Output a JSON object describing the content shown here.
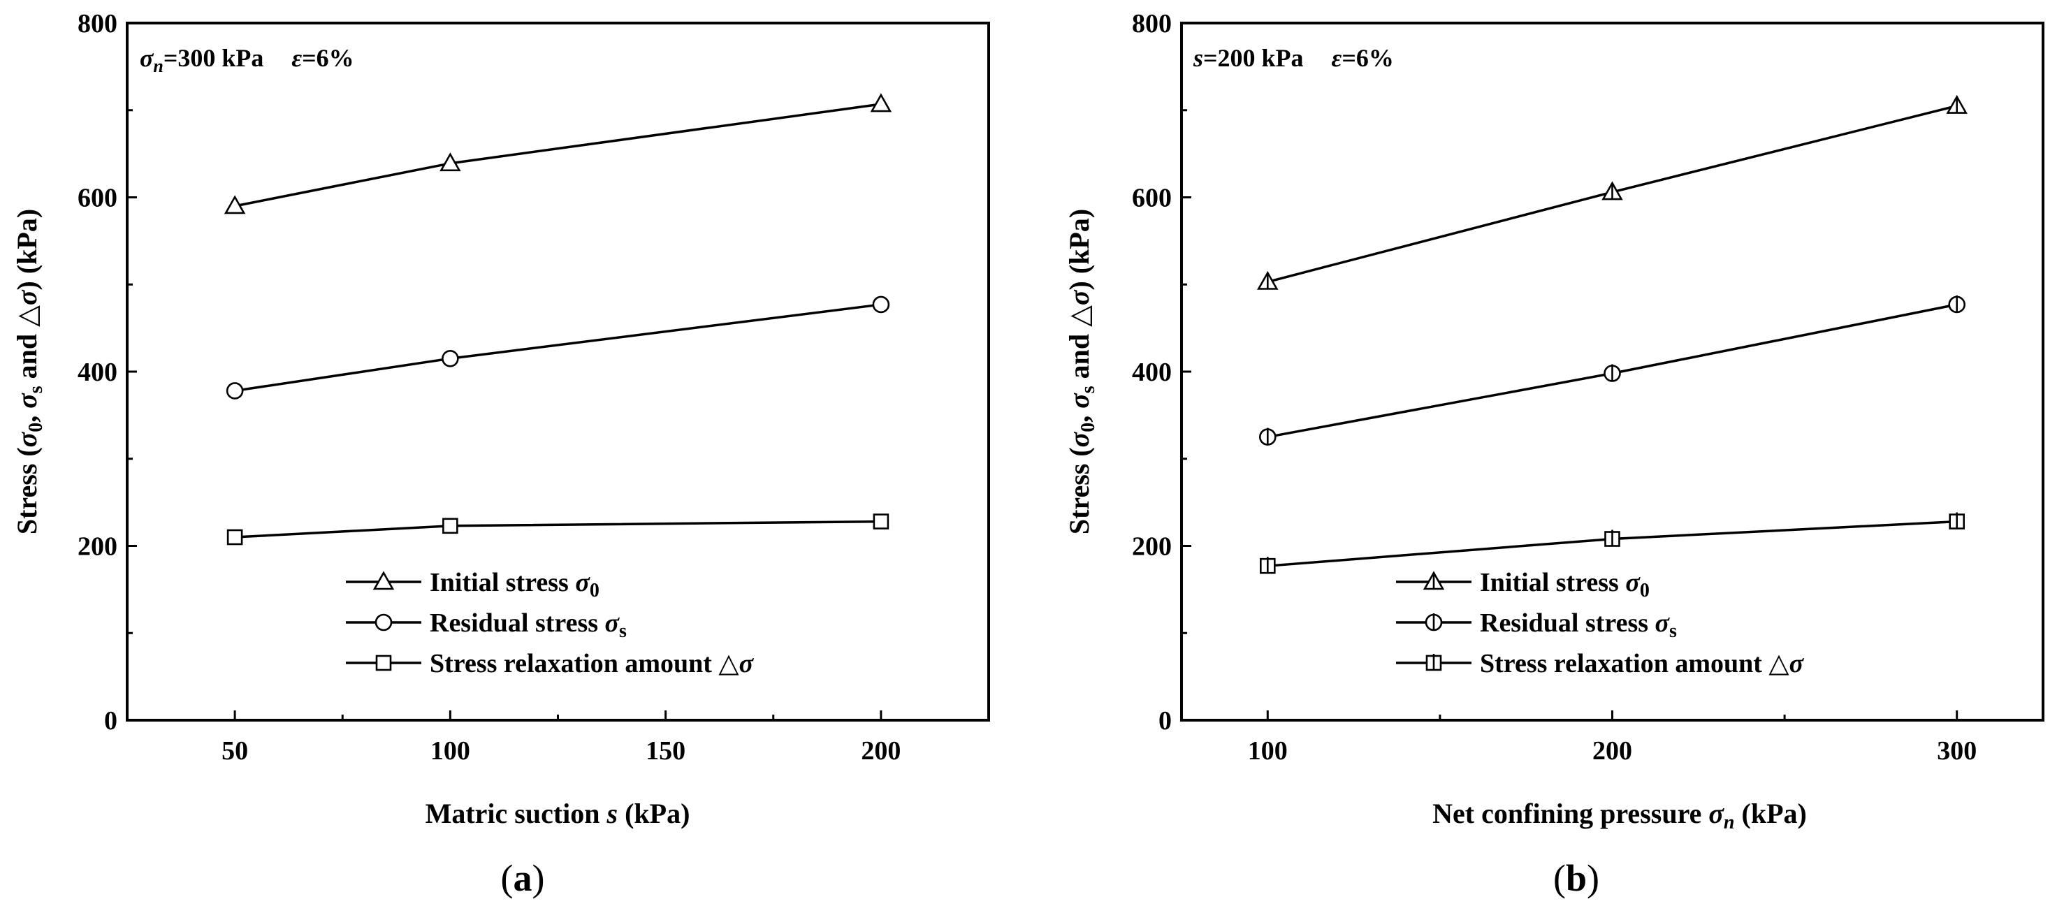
{
  "chart_data": [
    {
      "id": "a",
      "type": "line",
      "panel_label": "a",
      "annotation": "σn=300 kPa    ε=6%",
      "xlabel": "Matric suction s (kPa)",
      "ylabel": "Stress (σ0, σs and △σ) (kPa)",
      "xlim": [
        25,
        225
      ],
      "ylim": [
        0,
        800
      ],
      "xticks": [
        50,
        100,
        150,
        200
      ],
      "yticks": [
        0,
        200,
        400,
        600,
        800
      ],
      "x": [
        50,
        100,
        200
      ],
      "legend_position": "lower-center",
      "series": [
        {
          "name": "Initial stress σ0",
          "marker": "triangle",
          "values": [
            590,
            639,
            707
          ]
        },
        {
          "name": "Residual stress σs",
          "marker": "circle",
          "values": [
            378,
            415,
            477
          ]
        },
        {
          "name": "Stress relaxation amount △σ",
          "marker": "square",
          "values": [
            210,
            223,
            228
          ]
        }
      ]
    },
    {
      "id": "b",
      "type": "line",
      "panel_label": "b",
      "annotation": "s=200 kPa    ε=6%",
      "xlabel": "Net confining pressure σn (kPa)",
      "ylabel": "Stress (σ0, σs and △σ) (kPa)",
      "xlim": [
        75,
        325
      ],
      "ylim": [
        0,
        800
      ],
      "xticks": [
        100,
        200,
        300
      ],
      "yticks": [
        0,
        200,
        400,
        600,
        800
      ],
      "x": [
        100,
        200,
        300
      ],
      "legend_position": "lower-center",
      "series": [
        {
          "name": "Initial stress σ0",
          "marker": "triangle-bar",
          "values": [
            503,
            606,
            705
          ]
        },
        {
          "name": "Residual stress σs",
          "marker": "circle-bar",
          "values": [
            325,
            398,
            477
          ]
        },
        {
          "name": "Stress relaxation amount △σ",
          "marker": "square-bar",
          "values": [
            177,
            208,
            228
          ]
        }
      ]
    }
  ]
}
